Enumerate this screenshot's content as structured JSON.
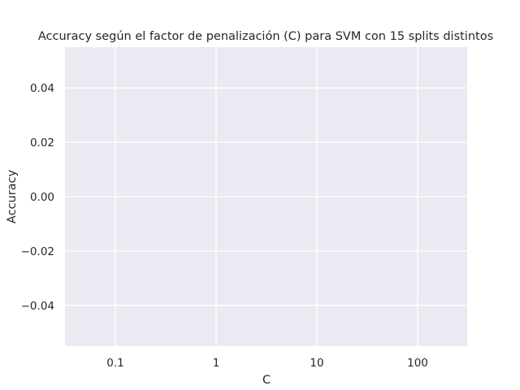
{
  "chart_data": {
    "type": "line",
    "title": "Accuracy según el factor de penalización (C) para SVM con 15 splits distintos",
    "xlabel": "C",
    "ylabel": "Accuracy",
    "categories": [
      "0.1",
      "1",
      "10",
      "100"
    ],
    "x_scale": "categorical",
    "ylim": [
      -0.055,
      0.055
    ],
    "yticks": [
      0.04,
      0.02,
      0.0,
      -0.02,
      -0.04
    ],
    "ytick_labels": [
      "0.04",
      "0.02",
      "0.00",
      "−0.02",
      "−0.04"
    ],
    "series": [],
    "grid": true,
    "colors": {
      "plot_background": "#EAEAF2",
      "grid": "#FFFFFF",
      "text": "#262626"
    }
  }
}
